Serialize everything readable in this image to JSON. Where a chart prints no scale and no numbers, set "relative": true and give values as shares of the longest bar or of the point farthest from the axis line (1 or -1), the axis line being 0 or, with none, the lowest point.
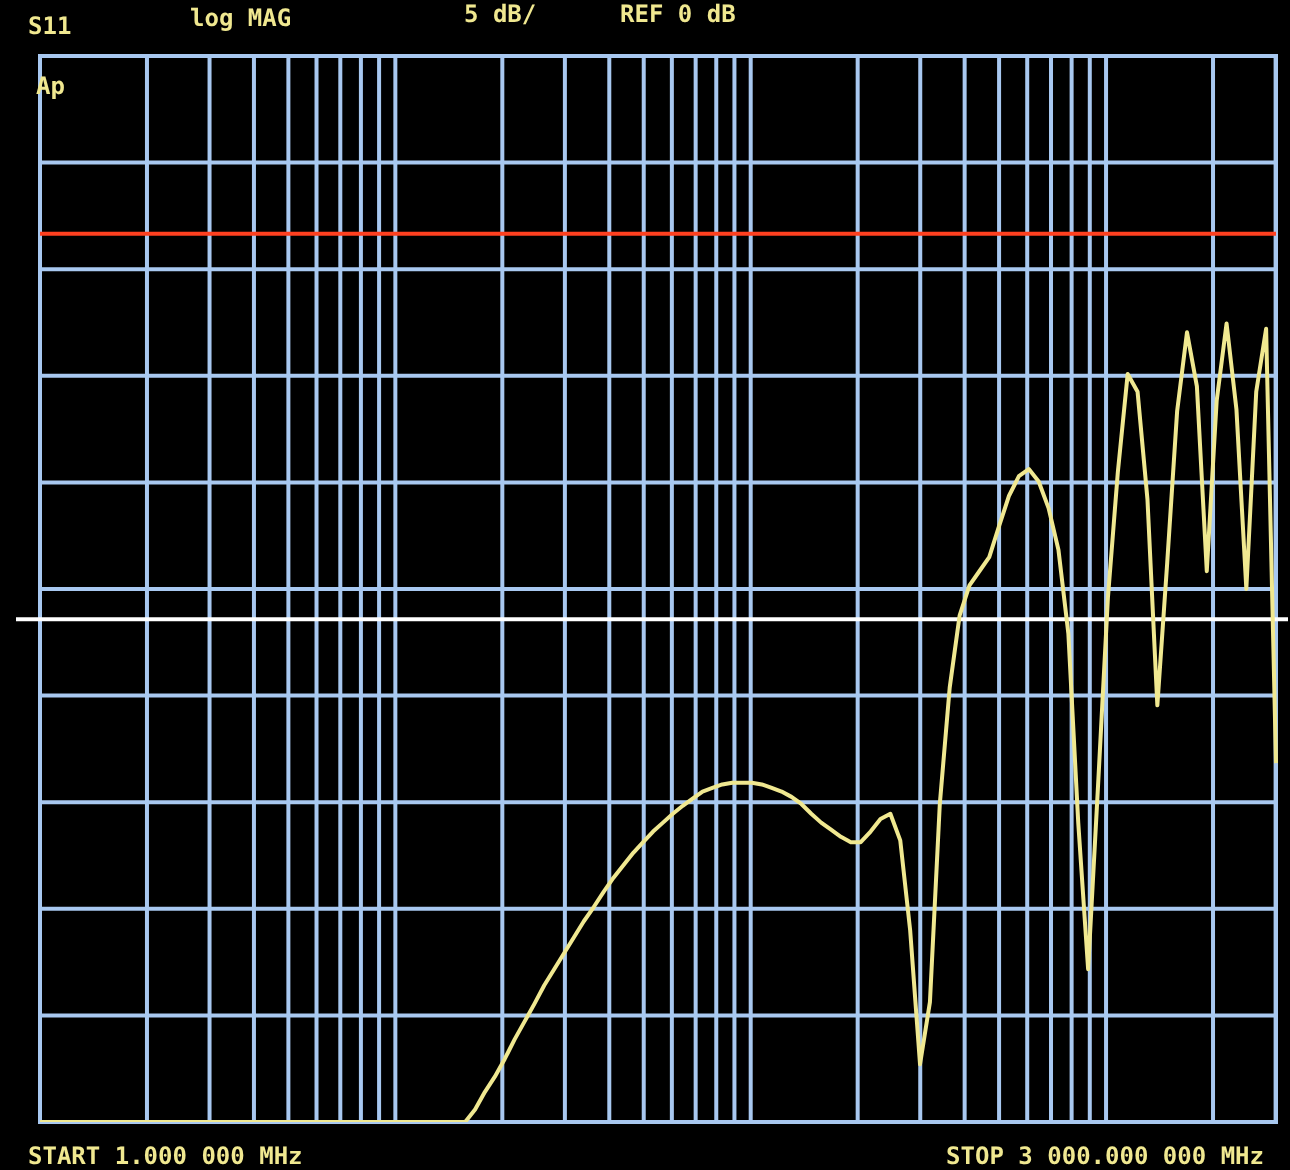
{
  "chart_data": {
    "type": "line",
    "relative": true,
    "grid": true,
    "legend": false,
    "marker": "none",
    "line_style": "solid",
    "annotations": [
      "S11",
      "log MAG",
      "5 dB/",
      "REF 0 dB",
      "Ap",
      "START 1.000 000 MHz",
      "STOP 3 000.000 000 MHz"
    ],
    "categories": [
      null,
      null,
      null,
      null,
      null,
      null,
      null,
      null,
      null,
      null,
      null,
      null,
      null,
      null,
      null,
      null,
      null,
      null,
      null,
      null,
      null,
      null,
      null,
      null,
      null,
      null,
      null,
      null,
      null,
      null,
      null,
      null,
      null,
      null,
      null,
      null,
      null,
      null,
      null,
      null,
      null,
      null,
      null,
      null,
      null,
      null,
      null,
      null,
      null,
      null,
      null,
      null,
      null,
      null,
      null,
      null,
      null,
      null,
      null,
      null,
      null,
      null,
      null,
      null,
      null,
      null,
      null,
      null,
      null,
      null,
      null,
      null,
      null,
      null,
      null,
      null,
      null,
      null,
      null,
      null,
      null,
      null,
      null,
      null,
      null,
      null,
      null,
      null,
      null,
      null,
      null,
      null,
      null,
      null,
      null,
      null,
      null,
      null,
      null,
      null,
      null,
      null,
      null,
      null,
      null,
      null,
      null,
      null,
      null,
      null,
      null,
      null,
      null,
      null,
      null,
      null,
      null,
      null,
      null,
      null,
      null,
      null,
      null,
      null,
      null,
      null
    ],
    "ref_lines": [
      {
        "axis": "y",
        "value": 0.566,
        "color": "#ffffff"
      }
    ],
    "series": [
      {
        "color": "#ff4020",
        "values": [
          1,
          1,
          1,
          1,
          1,
          1,
          1,
          1,
          1,
          1,
          1,
          1,
          1,
          1,
          1,
          1,
          1,
          1,
          1,
          1,
          1,
          1,
          1,
          1,
          1,
          1,
          1,
          1,
          1,
          1,
          1,
          1,
          1,
          1,
          1,
          1,
          1,
          1,
          1,
          1,
          1,
          1,
          1,
          1,
          1,
          1,
          1,
          1,
          1,
          1,
          1,
          1,
          1,
          1,
          1,
          1,
          1,
          1,
          1,
          1,
          1,
          1,
          1,
          1,
          1,
          1,
          1,
          1,
          1,
          1,
          1,
          1,
          1,
          1,
          1,
          1,
          1,
          1,
          1,
          1,
          1,
          1,
          1,
          1,
          1,
          1,
          1,
          1,
          1,
          1,
          1,
          1,
          1,
          1,
          1,
          1,
          1,
          1,
          1,
          1,
          1,
          1,
          1,
          1,
          1,
          1,
          1,
          1,
          1,
          1,
          1,
          1,
          1,
          1,
          1,
          1,
          1,
          1,
          1,
          1,
          1,
          1,
          1,
          1,
          1,
          1
        ]
      },
      {
        "color": "#f0e890",
        "values": [
          0,
          0,
          0,
          0,
          0,
          0,
          0,
          0,
          0,
          0,
          0,
          0,
          0,
          0,
          0,
          0,
          0,
          0,
          0,
          0,
          0,
          0,
          0,
          0,
          0,
          0,
          0,
          0,
          0,
          0,
          0,
          0,
          0,
          0,
          0,
          0,
          0,
          0,
          0,
          0,
          0,
          0,
          0,
          0,
          0.014,
          0.034,
          0.051,
          0.071,
          0.093,
          0.113,
          0.133,
          0.154,
          0.172,
          0.19,
          0.208,
          0.226,
          0.242,
          0.259,
          0.275,
          0.289,
          0.303,
          0.315,
          0.327,
          0.337,
          0.347,
          0.356,
          0.364,
          0.372,
          0.376,
          0.38,
          0.382,
          0.382,
          0.382,
          0.38,
          0.376,
          0.372,
          0.366,
          0.358,
          0.347,
          0.337,
          0.329,
          0.321,
          0.315,
          0.315,
          0.327,
          0.341,
          0.347,
          0.317,
          0.216,
          0.065,
          0.135,
          0.358,
          0.489,
          0.57,
          0.604,
          0.62,
          0.636,
          0.671,
          0.705,
          0.727,
          0.735,
          0.721,
          0.691,
          0.644,
          0.55,
          0.337,
          0.172,
          0.378,
          0.59,
          0.731,
          0.842,
          0.822,
          0.701,
          0.469,
          0.63,
          0.8,
          0.889,
          0.828,
          0.62,
          0.812,
          0.899,
          0.802,
          0.6,
          0.822,
          0.893,
          0.404
        ]
      }
    ]
  }
}
